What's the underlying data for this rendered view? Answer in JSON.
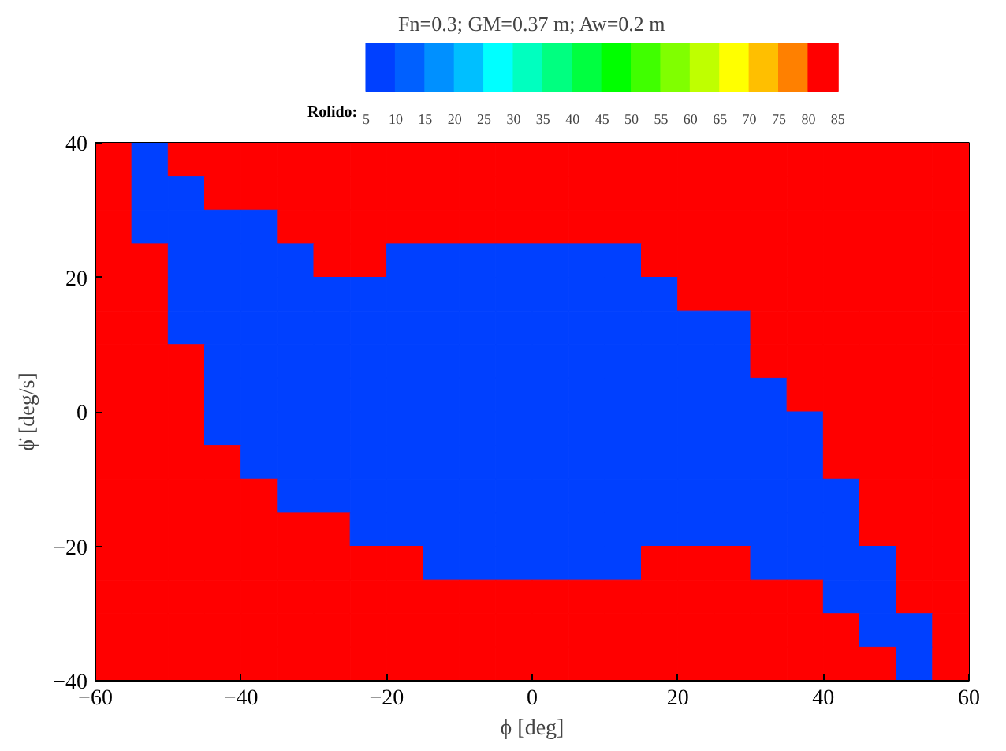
{
  "chart_data": {
    "type": "heatmap",
    "title": "Fn=0.3; GM=0.37 m; Aw=0.2 m",
    "xlabel": "ϕ [deg]",
    "ylabel": "ϕ̇ [deg/s]",
    "clabel": "Rolido:",
    "x": [
      -57.5,
      -52.5,
      -47.5,
      -42.5,
      -37.5,
      -32.5,
      -27.5,
      -22.5,
      -17.5,
      -12.5,
      -7.5,
      -2.5,
      2.5,
      7.5,
      12.5,
      17.5,
      22.5,
      27.5,
      32.5,
      37.5,
      42.5,
      47.5,
      52.5,
      57.5
    ],
    "xlim": [
      -60,
      60
    ],
    "ylim": [
      -40,
      40
    ],
    "xticks": [
      -60,
      -40,
      -20,
      0,
      20,
      40,
      60
    ],
    "yticks": [
      -40,
      -20,
      0,
      20,
      40
    ],
    "clim": [
      5,
      85
    ],
    "cticks": [
      5,
      10,
      15,
      20,
      25,
      30,
      35,
      40,
      45,
      50,
      55,
      60,
      65,
      70,
      75,
      80,
      85
    ],
    "colors": [
      "#0040ff",
      "#0060ff",
      "#0090ff",
      "#00bfff",
      "#00ffff",
      "#00ffbf",
      "#00ff80",
      "#00ff40",
      "#00ff00",
      "#40ff00",
      "#80ff00",
      "#bfff00",
      "#ffff00",
      "#ffbf00",
      "#ff8000",
      "#ff0000"
    ],
    "cells": [
      [
        85,
        5,
        85,
        85,
        85,
        85,
        85,
        85,
        85,
        85,
        85,
        85,
        85,
        85,
        85,
        85,
        85,
        85,
        85,
        85,
        85,
        85,
        85,
        85
      ],
      [
        85,
        5,
        5,
        85,
        85,
        85,
        85,
        85,
        85,
        85,
        85,
        85,
        85,
        85,
        85,
        85,
        85,
        85,
        85,
        85,
        85,
        85,
        85,
        85
      ],
      [
        85,
        5,
        5,
        5,
        5,
        85,
        85,
        85,
        85,
        85,
        85,
        85,
        85,
        85,
        85,
        85,
        85,
        85,
        85,
        85,
        85,
        85,
        85,
        85
      ],
      [
        85,
        85,
        5,
        5,
        5,
        5,
        85,
        85,
        5,
        5,
        5,
        5,
        5,
        5,
        5,
        85,
        85,
        85,
        85,
        85,
        85,
        85,
        85,
        85
      ],
      [
        85,
        85,
        5,
        5,
        5,
        5,
        5,
        5,
        5,
        5,
        5,
        5,
        5,
        5,
        5,
        5,
        85,
        85,
        85,
        85,
        85,
        85,
        85,
        85
      ],
      [
        85,
        85,
        5,
        5,
        5,
        5,
        5,
        5,
        5,
        5,
        5,
        5,
        5,
        5,
        5,
        5,
        5,
        5,
        85,
        85,
        85,
        85,
        85,
        85
      ],
      [
        85,
        85,
        85,
        5,
        5,
        5,
        5,
        5,
        5,
        5,
        5,
        5,
        5,
        5,
        5,
        5,
        5,
        5,
        85,
        85,
        85,
        85,
        85,
        85
      ],
      [
        85,
        85,
        85,
        5,
        5,
        5,
        5,
        5,
        5,
        5,
        5,
        5,
        5,
        5,
        5,
        5,
        5,
        5,
        5,
        85,
        85,
        85,
        85,
        85
      ],
      [
        85,
        85,
        85,
        5,
        5,
        5,
        5,
        5,
        5,
        5,
        5,
        5,
        5,
        5,
        5,
        5,
        5,
        5,
        5,
        5,
        85,
        85,
        85,
        85
      ],
      [
        85,
        85,
        85,
        85,
        5,
        5,
        5,
        5,
        5,
        5,
        5,
        5,
        5,
        5,
        5,
        5,
        5,
        5,
        5,
        5,
        85,
        85,
        85,
        85
      ],
      [
        85,
        85,
        85,
        85,
        85,
        5,
        5,
        5,
        5,
        5,
        5,
        5,
        5,
        5,
        5,
        5,
        5,
        5,
        5,
        5,
        5,
        85,
        85,
        85
      ],
      [
        85,
        85,
        85,
        85,
        85,
        85,
        85,
        5,
        5,
        5,
        5,
        5,
        5,
        5,
        5,
        5,
        5,
        5,
        5,
        5,
        5,
        85,
        85,
        85
      ],
      [
        85,
        85,
        85,
        85,
        85,
        85,
        85,
        85,
        85,
        5,
        5,
        5,
        5,
        5,
        5,
        85,
        85,
        85,
        5,
        5,
        5,
        5,
        85,
        85
      ],
      [
        85,
        85,
        85,
        85,
        85,
        85,
        85,
        85,
        85,
        85,
        85,
        85,
        85,
        85,
        85,
        85,
        85,
        85,
        85,
        85,
        5,
        5,
        85,
        85
      ],
      [
        85,
        85,
        85,
        85,
        85,
        85,
        85,
        85,
        85,
        85,
        85,
        85,
        85,
        85,
        85,
        85,
        85,
        85,
        85,
        85,
        85,
        5,
        5,
        85
      ],
      [
        85,
        85,
        85,
        85,
        85,
        85,
        85,
        85,
        85,
        85,
        85,
        85,
        85,
        85,
        85,
        85,
        85,
        85,
        85,
        85,
        85,
        85,
        5,
        85
      ]
    ]
  }
}
